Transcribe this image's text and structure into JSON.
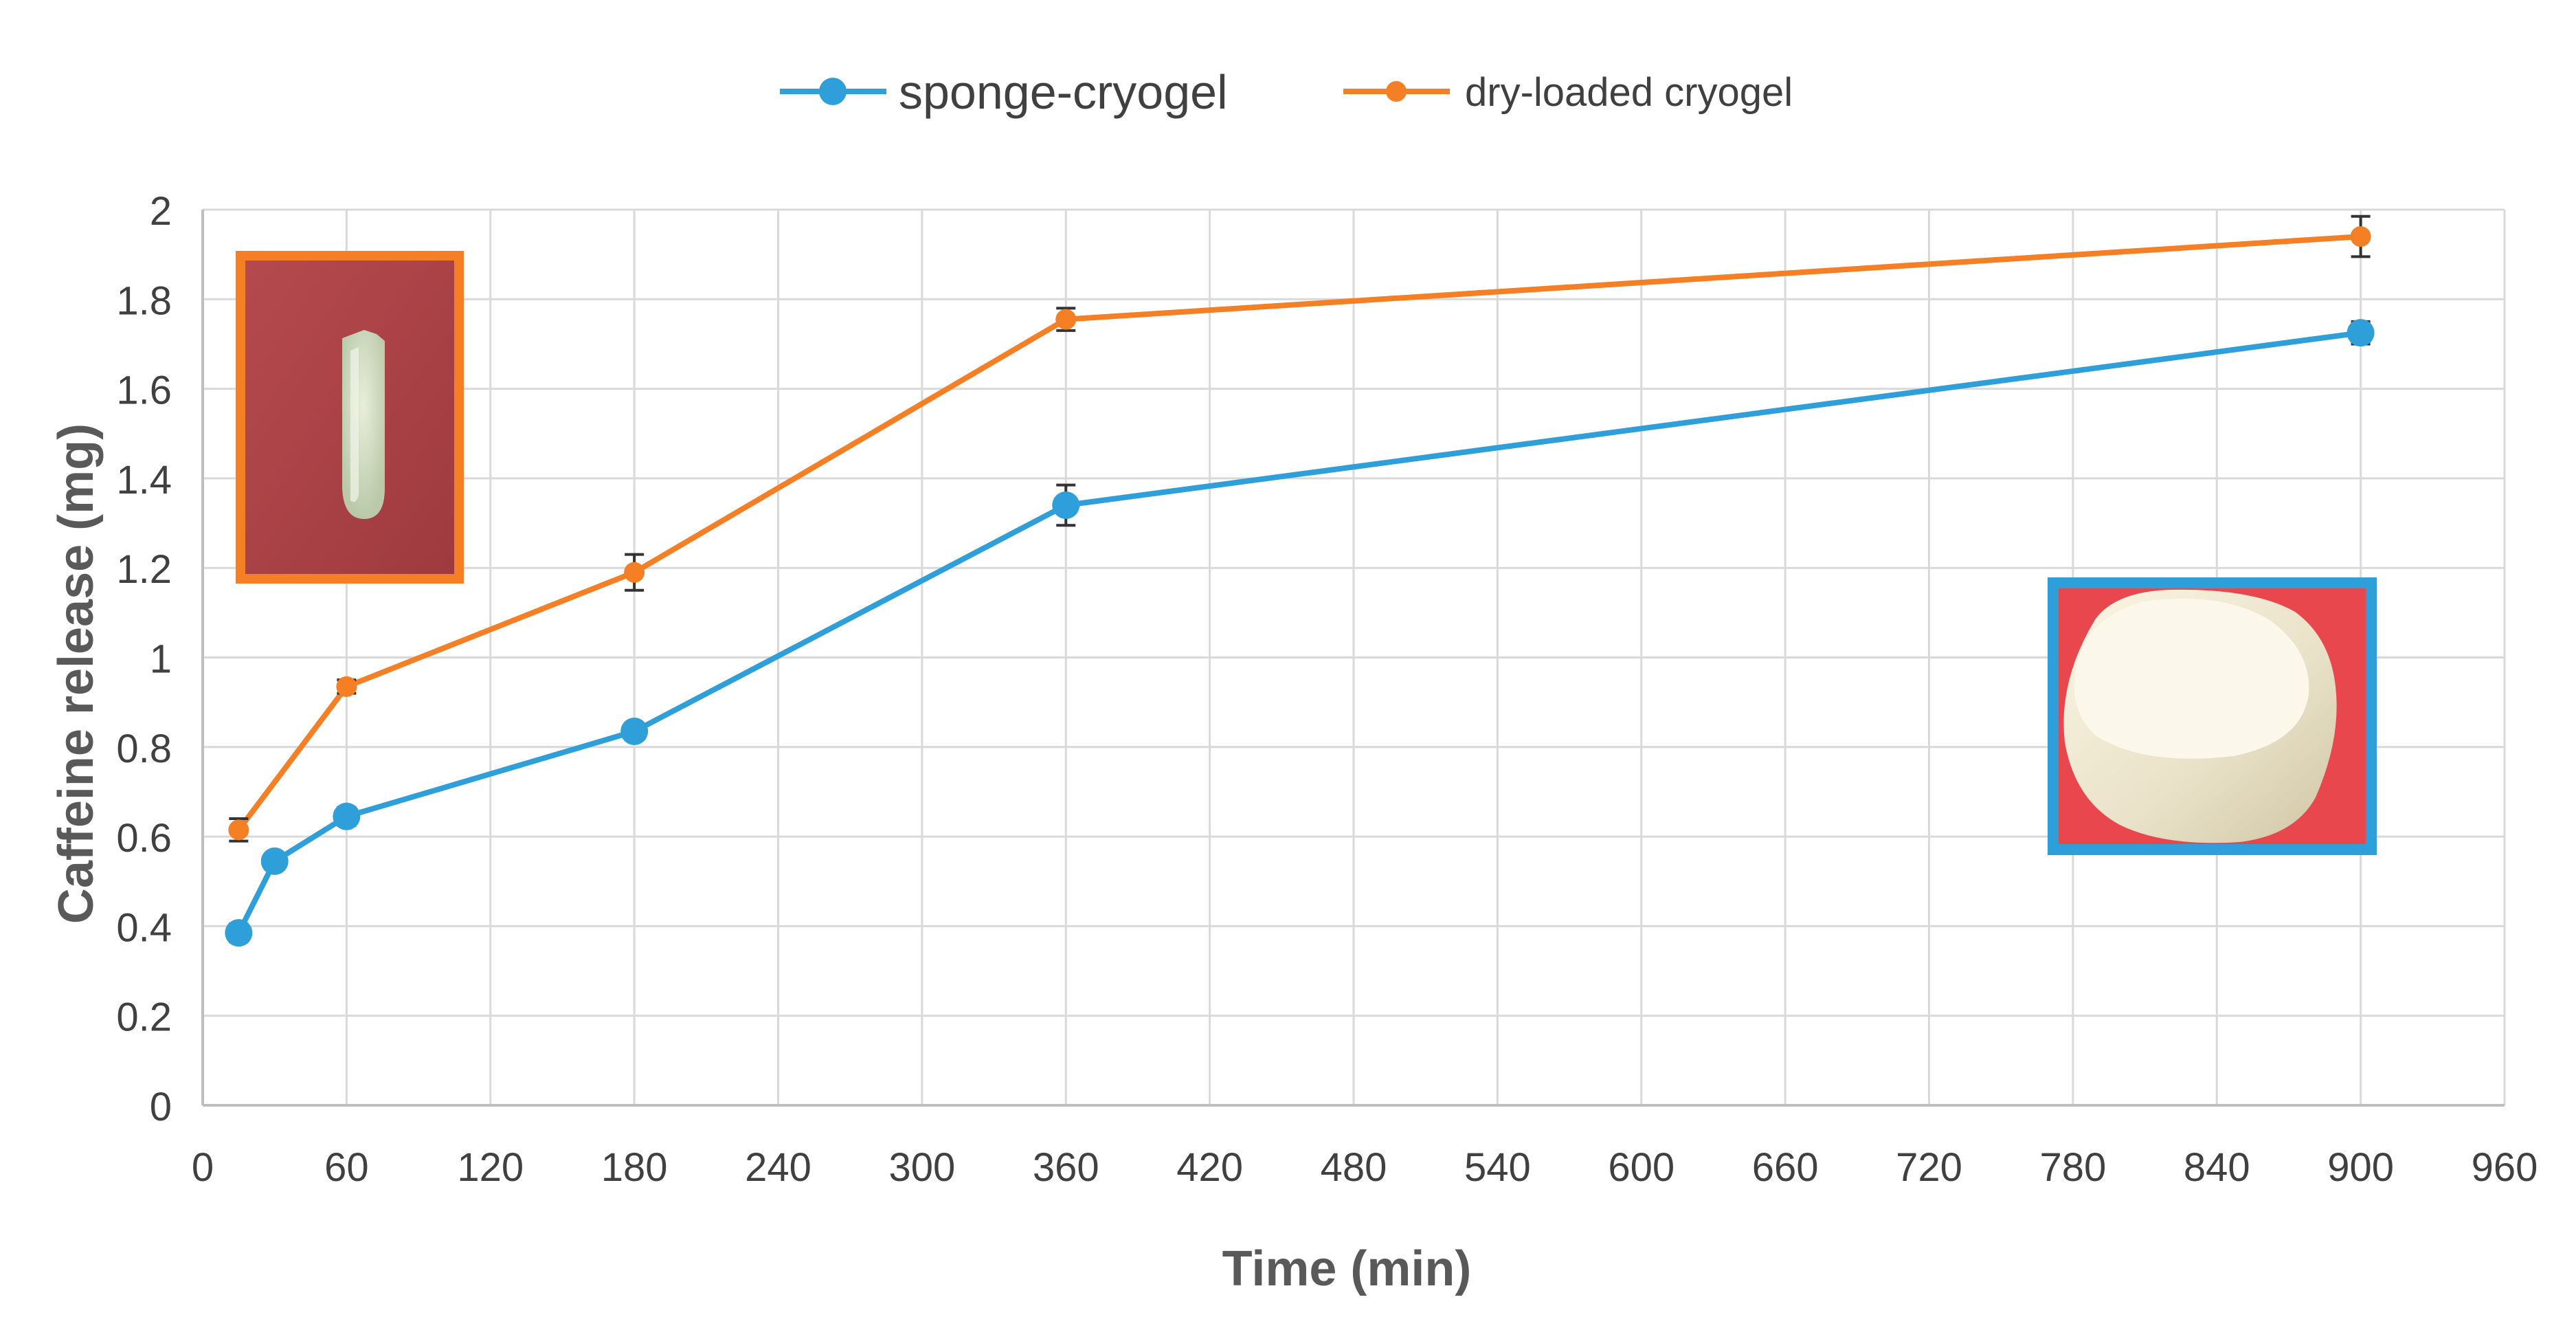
{
  "chart_data": {
    "type": "line",
    "title": "",
    "xlabel": "Time (min)",
    "ylabel": "Caffeine release  (mg)",
    "xlim": [
      0,
      960
    ],
    "ylim": [
      0,
      2
    ],
    "xticks": [
      0,
      60,
      120,
      180,
      240,
      300,
      360,
      420,
      480,
      540,
      600,
      660,
      720,
      780,
      840,
      900,
      960
    ],
    "yticks": [
      0,
      0.2,
      0.4,
      0.6,
      0.8,
      1,
      1.2,
      1.4,
      1.6,
      1.8,
      2
    ],
    "xtick_labels": [
      "0",
      "60",
      "120",
      "180",
      "240",
      "300",
      "360",
      "420",
      "480",
      "540",
      "600",
      "660",
      "720",
      "780",
      "840",
      "900",
      "960"
    ],
    "ytick_labels": [
      "0",
      "0.2",
      "0.4",
      "0.6",
      "0.8",
      "1",
      "1.2",
      "1.4",
      "1.6",
      "1.8",
      "2"
    ],
    "grid": true,
    "legend_position": "top-center",
    "series": [
      {
        "name": "sponge-cryogel",
        "color": "#2e9fd8",
        "marker": "large-circle",
        "x": [
          15,
          30,
          60,
          180,
          360,
          900
        ],
        "values": [
          0.385,
          0.545,
          0.645,
          0.835,
          1.34,
          1.725
        ],
        "errors": [
          0.02,
          0.015,
          0.02,
          0.015,
          0.045,
          0.025
        ]
      },
      {
        "name": "dry-loaded cryogel",
        "color": "#f47f25",
        "marker": "small-circle",
        "x": [
          15,
          60,
          180,
          360,
          900
        ],
        "values": [
          0.615,
          0.935,
          1.19,
          1.755,
          1.94
        ],
        "errors": [
          0.025,
          0.015,
          0.04,
          0.025,
          0.045
        ]
      }
    ],
    "insets": [
      {
        "name": "dry-loaded-cryogel-photo",
        "frame_color": "#f47f25",
        "position": "top-left"
      },
      {
        "name": "sponge-cryogel-photo",
        "frame_color": "#2e9fd8",
        "position": "right-middle"
      }
    ]
  }
}
